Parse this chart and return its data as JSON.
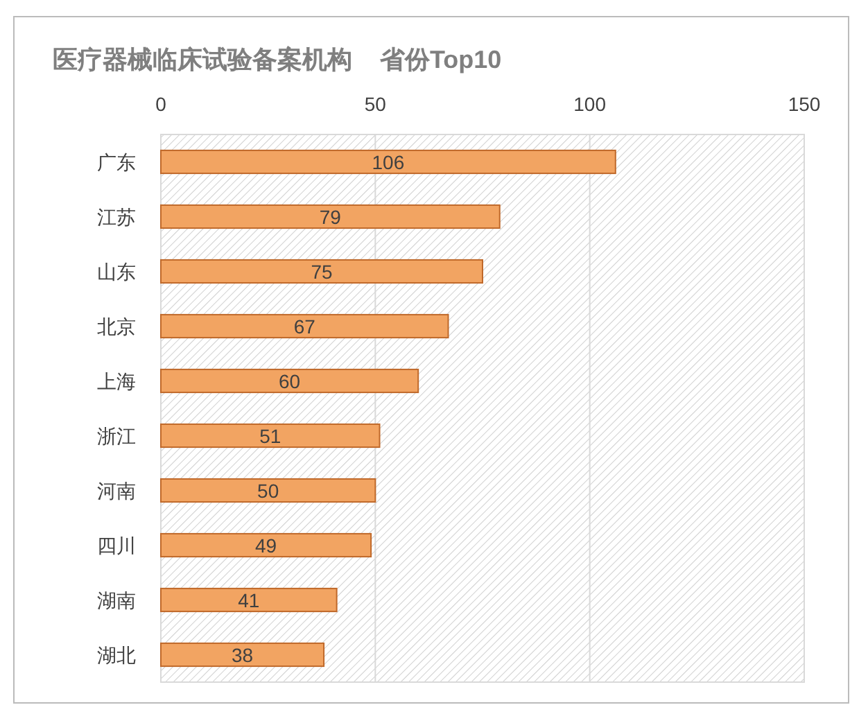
{
  "chart_data": {
    "type": "bar",
    "orientation": "horizontal",
    "title": "医疗器械临床试验备案机构    省份Top10",
    "categories": [
      "广东",
      "江苏",
      "山东",
      "北京",
      "上海",
      "浙江",
      "河南",
      "四川",
      "湖南",
      "湖北"
    ],
    "values": [
      106,
      79,
      75,
      67,
      60,
      51,
      50,
      49,
      41,
      38
    ],
    "color": "#f2a462",
    "xlim": [
      0,
      150
    ],
    "xticks": [
      0,
      50,
      100,
      150
    ],
    "grid": "x",
    "data_labels": true
  }
}
